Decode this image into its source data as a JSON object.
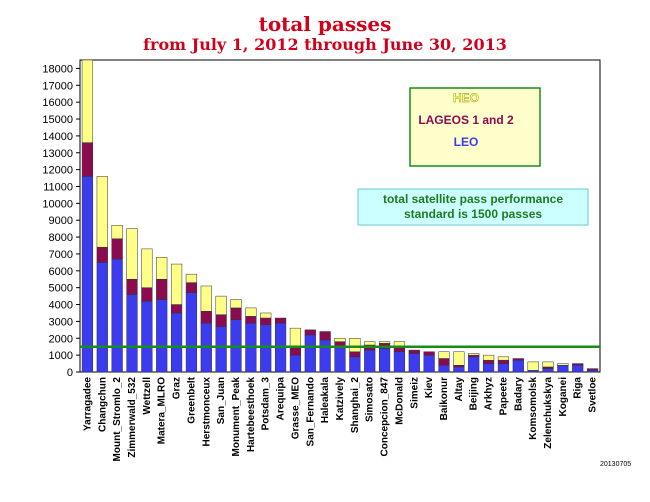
{
  "title": "total passes",
  "subtitle": "from July 1, 2012 through June 30, 2013",
  "stamp": "20130705",
  "colors": {
    "leo": "#3b3bf0",
    "lageos": "#8b0a50",
    "heo": "#ffff88",
    "standard_line": "#1a8c1a",
    "note_fill": "#ccffff",
    "legend_fill": "#ffffcc"
  },
  "legend": {
    "heo_label": "HEO",
    "lageos_label": "LAGEOS 1 and 2",
    "leo_label": "LEO"
  },
  "note": {
    "line1": "total satellite pass performance",
    "line2": "standard is 1500 passes"
  },
  "chart_data": {
    "type": "bar",
    "stacked": true,
    "title": "total passes",
    "subtitle": "from July 1, 2012 through June 30, 2013",
    "ylim": [
      0,
      18500
    ],
    "yticks": [
      0,
      1000,
      2000,
      3000,
      4000,
      5000,
      6000,
      7000,
      8000,
      9000,
      10000,
      11000,
      12000,
      13000,
      14000,
      15000,
      16000,
      17000,
      18000
    ],
    "standard": 1500,
    "categories": [
      "Yarragadee",
      "Changchun",
      "Mount_Stromlo_2",
      "Zimmerwald_532",
      "Wettzell",
      "Matera_MLRO",
      "Graz",
      "Greenbelt",
      "Herstmonceux",
      "San_Juan",
      "Monument_Peak",
      "Hartebeesthoek",
      "Potsdam_3",
      "Arequipa",
      "Grasse_MEO",
      "San_Fernando",
      "Haleakala",
      "Katzively",
      "Shanghai_2",
      "Simosato",
      "Concepcion_847",
      "McDonald",
      "Simeiz",
      "Kiev",
      "Baikonur",
      "Altay",
      "Beijing",
      "Arkhyz",
      "Papeete",
      "Badary",
      "Komsomolsk",
      "Zelenchukskya",
      "Koganei",
      "Riga",
      "Svetloe"
    ],
    "series": [
      {
        "name": "LEO",
        "values": [
          11600,
          6500,
          6700,
          4600,
          4200,
          4300,
          3500,
          4700,
          2900,
          2700,
          3100,
          2900,
          2800,
          2900,
          1000,
          2200,
          1900,
          1500,
          900,
          1300,
          1400,
          1200,
          1100,
          1000,
          400,
          300,
          900,
          500,
          500,
          700,
          100,
          200,
          400,
          400,
          100
        ]
      },
      {
        "name": "LAGEOS 1 and 2",
        "values": [
          2000,
          900,
          1200,
          900,
          800,
          1200,
          500,
          600,
          700,
          700,
          700,
          400,
          400,
          300,
          500,
          300,
          500,
          300,
          300,
          300,
          300,
          300,
          200,
          200,
          400,
          100,
          100,
          200,
          200,
          100,
          0,
          100,
          0,
          100,
          100
        ]
      },
      {
        "name": "HEO",
        "values": [
          4900,
          4200,
          800,
          3000,
          2300,
          1300,
          2400,
          500,
          1500,
          1100,
          500,
          500,
          300,
          0,
          1100,
          0,
          0,
          200,
          800,
          200,
          100,
          300,
          0,
          0,
          400,
          800,
          100,
          300,
          200,
          0,
          500,
          300,
          100,
          0,
          0
        ]
      }
    ]
  }
}
